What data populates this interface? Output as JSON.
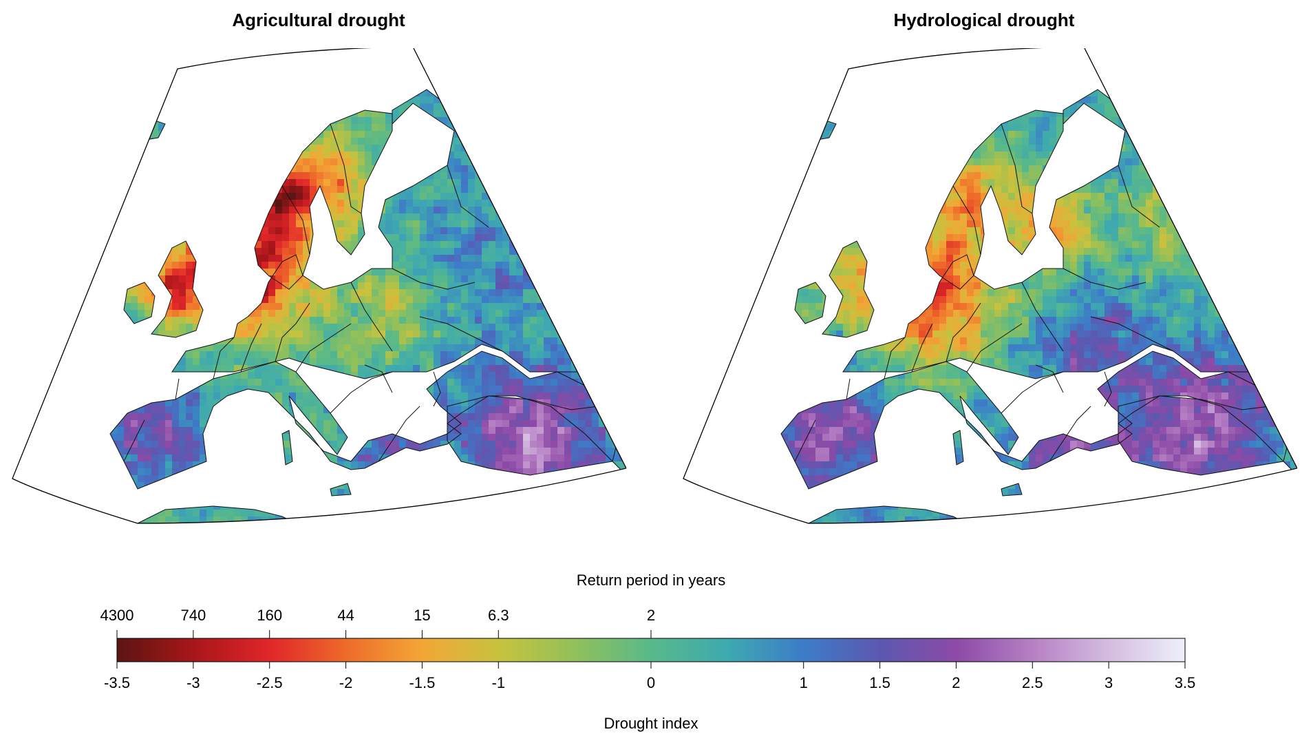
{
  "panels": [
    {
      "title": "Agricultural drought",
      "pattern": "agricultural"
    },
    {
      "title": "Hydrological drought",
      "pattern": "hydrological"
    }
  ],
  "colorbar": {
    "top_title": "Return period in years",
    "bottom_title": "Drought index",
    "range": [
      -3.5,
      3.5
    ],
    "index_ticks": [
      "-3.5",
      "-3",
      "-2.5",
      "-2",
      "-1.5",
      "-1",
      "0",
      "1",
      "1.5",
      "2",
      "2.5",
      "3",
      "3.5"
    ],
    "index_tick_values": [
      -3.5,
      -3,
      -2.5,
      -2,
      -1.5,
      -1,
      0,
      1,
      1.5,
      2,
      2.5,
      3,
      3.5
    ],
    "return_ticks": [
      "4300",
      "740",
      "160",
      "44",
      "15",
      "6.3",
      "2"
    ],
    "return_tick_values": [
      -3.5,
      -3,
      -2.5,
      -2,
      -1.5,
      -1,
      0
    ],
    "color_stops": [
      {
        "v": -3.5,
        "c": "#5a1512"
      },
      {
        "v": -3.0,
        "c": "#a8161a"
      },
      {
        "v": -2.5,
        "c": "#e0262a"
      },
      {
        "v": -2.0,
        "c": "#ee6a2a"
      },
      {
        "v": -1.5,
        "c": "#f2a636"
      },
      {
        "v": -1.0,
        "c": "#c8c23e"
      },
      {
        "v": -0.5,
        "c": "#92c05a"
      },
      {
        "v": 0.0,
        "c": "#58b98a"
      },
      {
        "v": 0.5,
        "c": "#3ea9b0"
      },
      {
        "v": 1.0,
        "c": "#3d7cc8"
      },
      {
        "v": 1.5,
        "c": "#5c58b0"
      },
      {
        "v": 2.0,
        "c": "#8c4aa6"
      },
      {
        "v": 2.5,
        "c": "#b680c4"
      },
      {
        "v": 3.0,
        "c": "#d4bce0"
      },
      {
        "v": 3.5,
        "c": "#eef0fa"
      }
    ]
  }
}
